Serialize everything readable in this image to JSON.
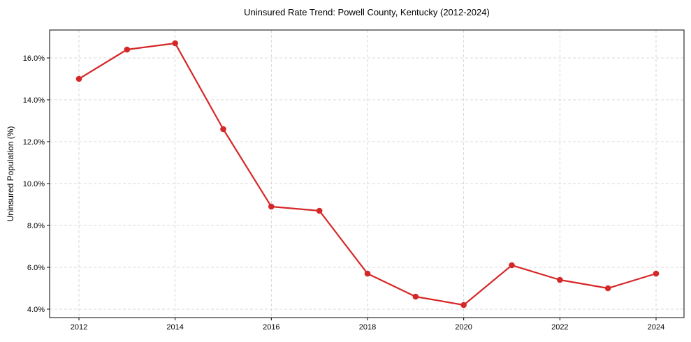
{
  "chart_data": {
    "type": "line",
    "title": "Uninsured Rate Trend: Powell County, Kentucky (2012-2024)",
    "xlabel": "",
    "ylabel": "Uninsured Population (%)",
    "x": [
      2012,
      2013,
      2014,
      2015,
      2016,
      2017,
      2018,
      2019,
      2020,
      2021,
      2022,
      2023,
      2024
    ],
    "series": [
      {
        "name": "Uninsured Rate",
        "color": "#d62728",
        "values": [
          15.0,
          16.4,
          16.7,
          12.6,
          8.9,
          8.7,
          5.7,
          4.6,
          4.2,
          6.1,
          5.4,
          5.0,
          5.7
        ]
      }
    ],
    "x_ticks": [
      "2012",
      "2014",
      "2016",
      "2018",
      "2020",
      "2022",
      "2024"
    ],
    "y_ticks": [
      "4.0%",
      "6.0%",
      "8.0%",
      "10.0%",
      "12.0%",
      "14.0%",
      "16.0%"
    ],
    "y_tick_values": [
      4,
      6,
      8,
      10,
      12,
      14,
      16
    ],
    "x_tick_values": [
      2012,
      2014,
      2016,
      2018,
      2020,
      2022,
      2024
    ],
    "xlim": [
      2011.4,
      2024.6
    ],
    "ylim": [
      3.6,
      17.3
    ],
    "grid": true,
    "legend": null
  }
}
